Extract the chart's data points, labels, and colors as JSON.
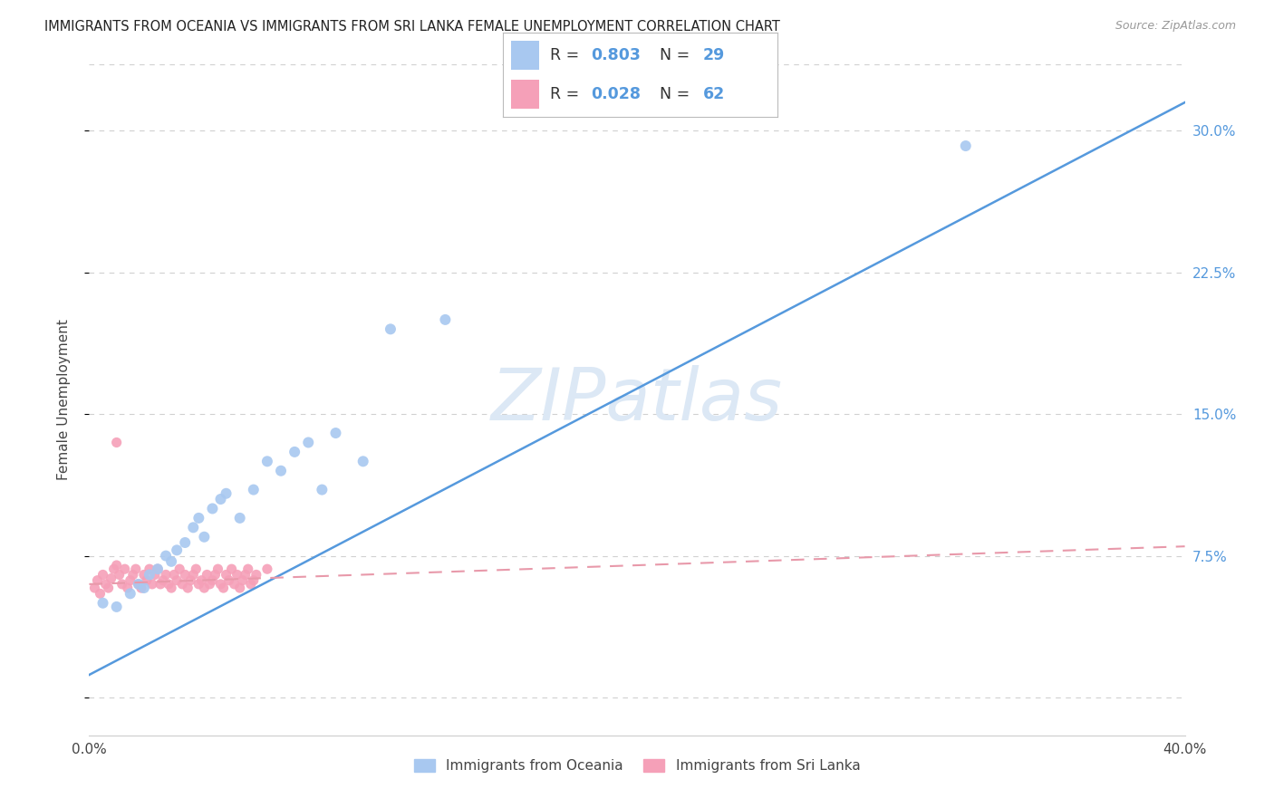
{
  "title": "IMMIGRANTS FROM OCEANIA VS IMMIGRANTS FROM SRI LANKA FEMALE UNEMPLOYMENT CORRELATION CHART",
  "source": "Source: ZipAtlas.com",
  "ylabel": "Female Unemployment",
  "xlim": [
    0.0,
    0.4
  ],
  "ylim": [
    -0.02,
    0.335
  ],
  "xticks": [
    0.0,
    0.1,
    0.2,
    0.3,
    0.4
  ],
  "xtick_labels": [
    "0.0%",
    "",
    "",
    "",
    "40.0%"
  ],
  "ytick_vals": [
    0.0,
    0.075,
    0.15,
    0.225,
    0.3
  ],
  "ytick_labels_right": [
    "",
    "7.5%",
    "15.0%",
    "22.5%",
    "30.0%"
  ],
  "oceania_color": "#a8c8f0",
  "srilanka_color": "#f5a0b8",
  "line_oceania_color": "#5599dd",
  "line_srilanka_color": "#e899aa",
  "watermark_color": "#dce8f5",
  "background_color": "#ffffff",
  "grid_color": "#d0d0d0",
  "oceania_x": [
    0.005,
    0.01,
    0.015,
    0.018,
    0.02,
    0.022,
    0.025,
    0.028,
    0.03,
    0.032,
    0.035,
    0.038,
    0.04,
    0.042,
    0.045,
    0.048,
    0.05,
    0.055,
    0.06,
    0.065,
    0.07,
    0.075,
    0.08,
    0.085,
    0.09,
    0.1,
    0.11,
    0.13,
    0.32
  ],
  "oceania_y": [
    0.05,
    0.048,
    0.055,
    0.06,
    0.058,
    0.065,
    0.068,
    0.075,
    0.072,
    0.078,
    0.082,
    0.09,
    0.095,
    0.085,
    0.1,
    0.105,
    0.108,
    0.095,
    0.11,
    0.125,
    0.12,
    0.13,
    0.135,
    0.11,
    0.14,
    0.125,
    0.195,
    0.2,
    0.292
  ],
  "srilanka_x": [
    0.002,
    0.003,
    0.004,
    0.005,
    0.006,
    0.007,
    0.008,
    0.009,
    0.01,
    0.011,
    0.012,
    0.013,
    0.014,
    0.015,
    0.016,
    0.017,
    0.018,
    0.019,
    0.02,
    0.021,
    0.022,
    0.023,
    0.024,
    0.025,
    0.026,
    0.027,
    0.028,
    0.029,
    0.03,
    0.031,
    0.032,
    0.033,
    0.034,
    0.035,
    0.036,
    0.037,
    0.038,
    0.039,
    0.04,
    0.041,
    0.042,
    0.043,
    0.044,
    0.045,
    0.046,
    0.047,
    0.048,
    0.049,
    0.05,
    0.051,
    0.052,
    0.053,
    0.054,
    0.055,
    0.056,
    0.057,
    0.058,
    0.059,
    0.06,
    0.061,
    0.065,
    0.01
  ],
  "srilanka_y": [
    0.058,
    0.062,
    0.055,
    0.065,
    0.06,
    0.058,
    0.063,
    0.068,
    0.07,
    0.065,
    0.06,
    0.068,
    0.058,
    0.062,
    0.065,
    0.068,
    0.06,
    0.058,
    0.065,
    0.062,
    0.068,
    0.06,
    0.065,
    0.068,
    0.06,
    0.062,
    0.065,
    0.06,
    0.058,
    0.065,
    0.062,
    0.068,
    0.06,
    0.065,
    0.058,
    0.062,
    0.065,
    0.068,
    0.06,
    0.062,
    0.058,
    0.065,
    0.06,
    0.062,
    0.065,
    0.068,
    0.06,
    0.058,
    0.065,
    0.062,
    0.068,
    0.06,
    0.065,
    0.058,
    0.062,
    0.065,
    0.068,
    0.06,
    0.062,
    0.065,
    0.068,
    0.135
  ],
  "line_oceania_x0": 0.0,
  "line_oceania_y0": 0.012,
  "line_oceania_x1": 0.4,
  "line_oceania_y1": 0.315,
  "line_srilanka_x0": 0.0,
  "line_srilanka_y0": 0.06,
  "line_srilanka_x1": 0.4,
  "line_srilanka_y1": 0.08,
  "legend_R1": "0.803",
  "legend_N1": "29",
  "legend_R2": "0.028",
  "legend_N2": "62",
  "label_oceania": "Immigrants from Oceania",
  "label_srilanka": "Immigrants from Sri Lanka"
}
